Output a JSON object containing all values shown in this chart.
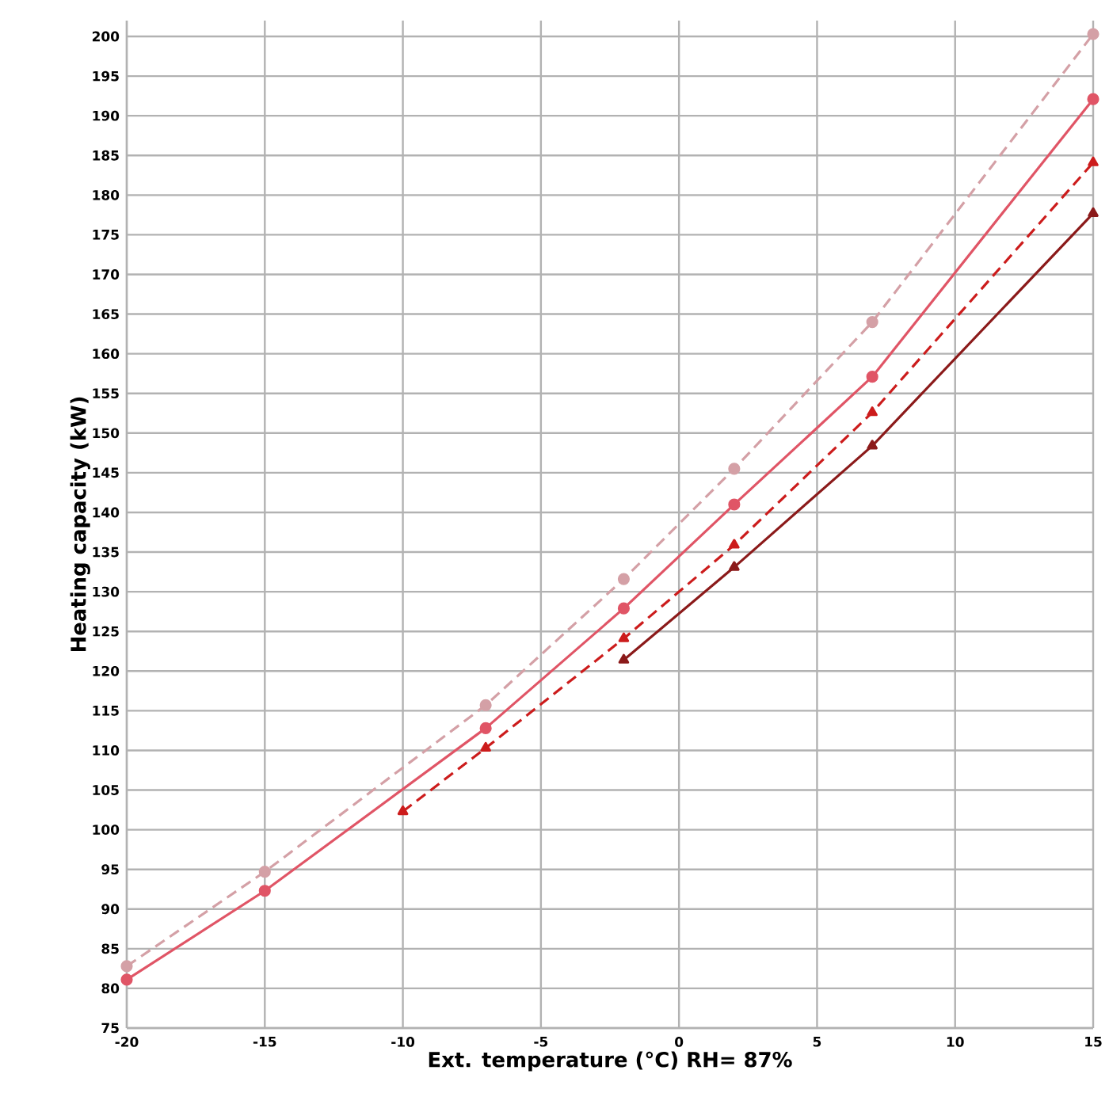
{
  "chart_data": {
    "type": "line",
    "xlabel": "Ext. temperature (°C) RH= 87%",
    "ylabel": "Heating capacity (kW)",
    "xlim": [
      -20,
      15
    ],
    "xticks": [
      -20,
      -15,
      -10,
      -5,
      0,
      5,
      10,
      15
    ],
    "ylim": [
      75,
      202
    ],
    "yticks": [
      75,
      80,
      85,
      90,
      95,
      100,
      105,
      110,
      115,
      120,
      125,
      130,
      135,
      140,
      145,
      150,
      155,
      160,
      165,
      170,
      175,
      180,
      185,
      190,
      195,
      200
    ],
    "grid": true,
    "series": [
      {
        "color": "#d4a0a6",
        "marker": "circle",
        "line_style": "dashed",
        "x": [
          -20,
          -15,
          -7,
          -2,
          2,
          7,
          15
        ],
        "values": [
          82.8,
          94.7,
          115.7,
          131.6,
          145.5,
          164,
          200.3
        ]
      },
      {
        "color": "#e05566",
        "marker": "circle",
        "line_style": "solid",
        "x": [
          -20,
          -15,
          -7,
          -2,
          2,
          7,
          15
        ],
        "values": [
          81.1,
          92.3,
          112.8,
          127.9,
          141,
          157.1,
          192.1
        ]
      },
      {
        "color": "#cc1c1c",
        "marker": "triangle",
        "line_style": "dashed",
        "x": [
          -10,
          -7,
          -2,
          2,
          7,
          15
        ],
        "values": [
          102.3,
          110.3,
          124.1,
          135.9,
          152.6,
          184.1
        ]
      },
      {
        "color": "#8b1a1a",
        "marker": "triangle",
        "line_style": "solid",
        "x": [
          -2,
          2,
          7,
          15
        ],
        "values": [
          121.4,
          133.1,
          148.4,
          177.7
        ]
      }
    ]
  }
}
